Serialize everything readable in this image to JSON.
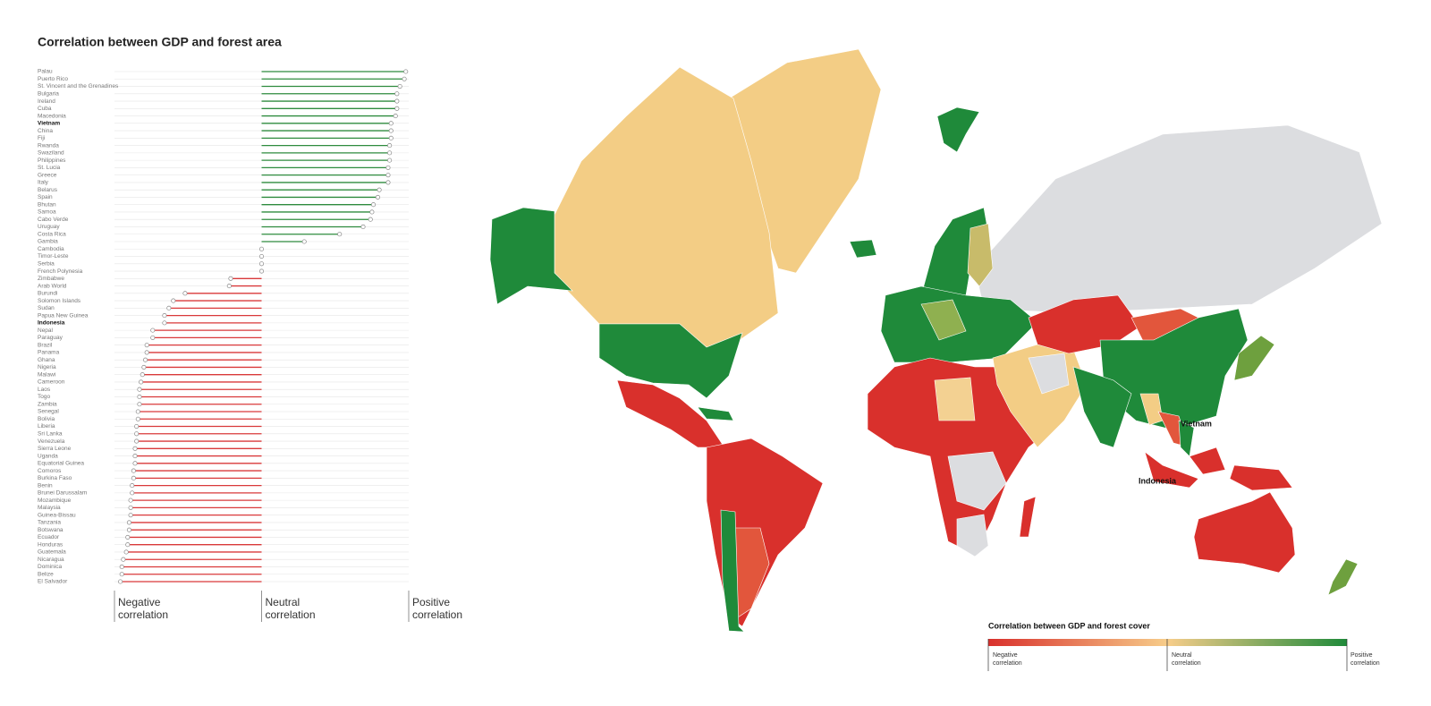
{
  "chart_data": {
    "type": "lollipop",
    "title": "Correlation between GDP and forest area",
    "categories": [
      "Palau",
      "Puerto Rico",
      "St. Vincent and the Grenadines",
      "Bulgaria",
      "Ireland",
      "Cuba",
      "Macedonia",
      "Vietnam",
      "China",
      "Fiji",
      "Rwanda",
      "Swaziland",
      "Philippines",
      "St. Lucia",
      "Greece",
      "Italy",
      "Belarus",
      "Spain",
      "Bhutan",
      "Samoa",
      "Cabo Verde",
      "Uruguay",
      "Costa Rica",
      "Gambia",
      "Cambodia",
      "Timor-Leste",
      "Serbia",
      "French Polynesia",
      "Zimbabwe",
      "Arab World",
      "Burundi",
      "Solomon Islands",
      "Sudan",
      "Papua New Guinea",
      "Indonesia",
      "Nepal",
      "Paraguay",
      "Brazil",
      "Panama",
      "Ghana",
      "Nigeria",
      "Malawi",
      "Cameroon",
      "Laos",
      "Togo",
      "Zambia",
      "Senegal",
      "Bolivia",
      "Liberia",
      "Sri Lanka",
      "Venezuela",
      "Sierra Leone",
      "Uganda",
      "Equatorial Guinea",
      "Comoros",
      "Burkina Faso",
      "Benin",
      "Brunei Darussalam",
      "Mozambique",
      "Malaysia",
      "Guinea-Bissau",
      "Tanzania",
      "Botswana",
      "Ecuador",
      "Honduras",
      "Guatemala",
      "Nicaragua",
      "Dominica",
      "Belize",
      "El Salvador"
    ],
    "values": [
      0.98,
      0.97,
      0.94,
      0.92,
      0.92,
      0.92,
      0.91,
      0.88,
      0.88,
      0.88,
      0.87,
      0.87,
      0.87,
      0.86,
      0.86,
      0.86,
      0.8,
      0.79,
      0.76,
      0.75,
      0.74,
      0.69,
      0.53,
      0.29,
      0,
      0,
      0,
      0,
      -0.21,
      -0.22,
      -0.52,
      -0.6,
      -0.63,
      -0.66,
      -0.66,
      -0.74,
      -0.74,
      -0.78,
      -0.78,
      -0.79,
      -0.8,
      -0.81,
      -0.82,
      -0.83,
      -0.83,
      -0.83,
      -0.84,
      -0.84,
      -0.85,
      -0.85,
      -0.85,
      -0.86,
      -0.86,
      -0.86,
      -0.87,
      -0.87,
      -0.88,
      -0.88,
      -0.89,
      -0.89,
      -0.89,
      -0.9,
      -0.9,
      -0.91,
      -0.91,
      -0.92,
      -0.94,
      -0.95,
      -0.95,
      -0.96
    ],
    "bold": [
      "Vietnam",
      "Indonesia"
    ],
    "positive_color": "#2e8b3e",
    "negative_color": "#d9393a",
    "xlim": [
      -1,
      1
    ],
    "xticks": [
      {
        "value": -1,
        "label": "Negative correlation"
      },
      {
        "value": 0,
        "label": "Neutral correlation"
      },
      {
        "value": 1,
        "label": "Positive correlation"
      }
    ]
  },
  "map": {
    "labels": [
      "Vietnam",
      "Indonesia"
    ],
    "legend": {
      "title": "Correlation between GDP and forest cover",
      "low_label": "Negative correlation",
      "mid_label": "Neutral correlation",
      "high_label": "Positive correlation"
    }
  }
}
